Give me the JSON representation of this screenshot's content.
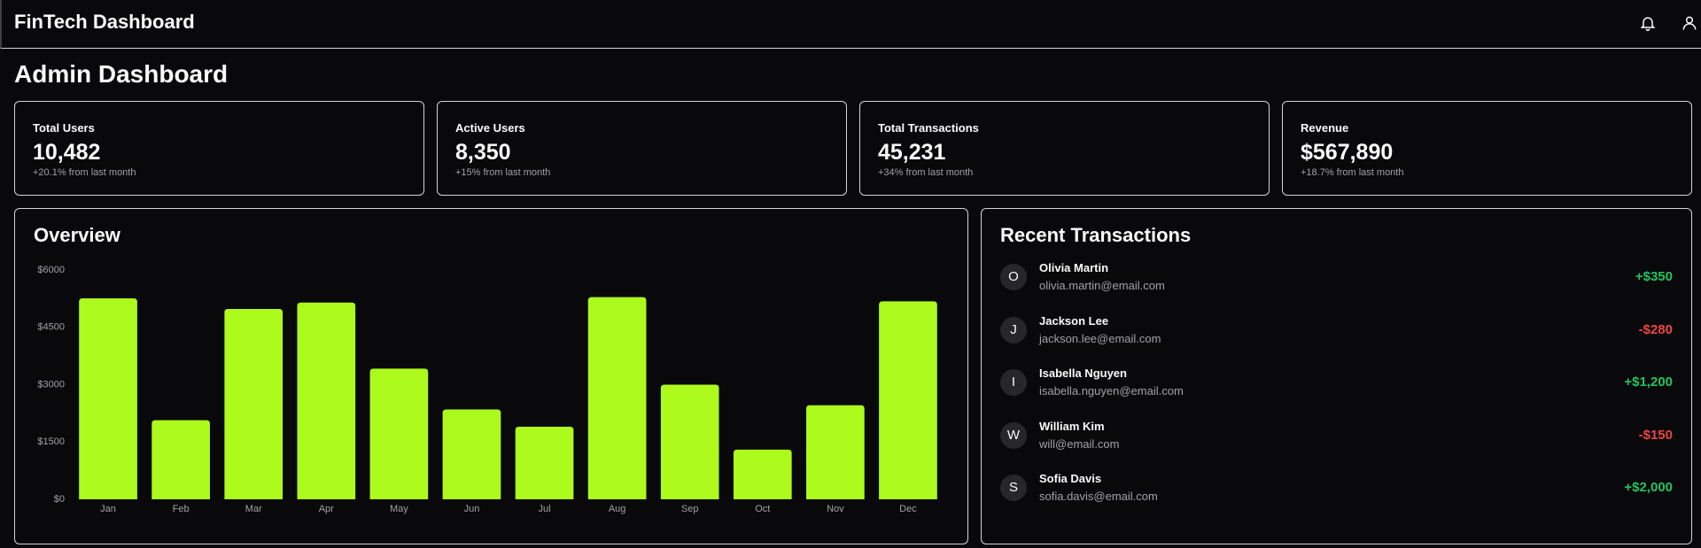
{
  "header": {
    "title": "FinTech Dashboard"
  },
  "page_title": "Admin Dashboard",
  "stats": [
    {
      "label": "Total Users",
      "value": "10,482",
      "note": "+20.1% from last month"
    },
    {
      "label": "Active Users",
      "value": "8,350",
      "note": "+15% from last month"
    },
    {
      "label": "Total Transactions",
      "value": "45,231",
      "note": "+34% from last month"
    },
    {
      "label": "Revenue",
      "value": "$567,890",
      "note": "+18.7% from last month"
    }
  ],
  "chart_data": {
    "type": "bar",
    "title": "Overview",
    "categories": [
      "Jan",
      "Feb",
      "Mar",
      "Apr",
      "May",
      "Jun",
      "Jul",
      "Aug",
      "Sep",
      "Oct",
      "Nov",
      "Dec"
    ],
    "values": [
      5260,
      2070,
      4980,
      5150,
      3420,
      2350,
      1900,
      5290,
      3000,
      1300,
      2460,
      5180
    ],
    "color": "#adfa1d",
    "ylim": [
      0,
      6000
    ],
    "yticks": [
      {
        "value": 0,
        "label": "$0"
      },
      {
        "value": 1500,
        "label": "$1500"
      },
      {
        "value": 3000,
        "label": "$3000"
      },
      {
        "value": 4500,
        "label": "$4500"
      },
      {
        "value": 6000,
        "label": "$6000"
      }
    ],
    "grid": false
  },
  "transactions": {
    "title": "Recent Transactions",
    "rows": [
      {
        "initial": "O",
        "name": "Olivia Martin",
        "email": "olivia.martin@email.com",
        "amount": "+$350"
      },
      {
        "initial": "J",
        "name": "Jackson Lee",
        "email": "jackson.lee@email.com",
        "amount": "-$280"
      },
      {
        "initial": "I",
        "name": "Isabella Nguyen",
        "email": "isabella.nguyen@email.com",
        "amount": "+$1,200"
      },
      {
        "initial": "W",
        "name": "William Kim",
        "email": "will@email.com",
        "amount": "-$150"
      },
      {
        "initial": "S",
        "name": "Sofia Davis",
        "email": "sofia.davis@email.com",
        "amount": "+$2,000"
      }
    ]
  }
}
